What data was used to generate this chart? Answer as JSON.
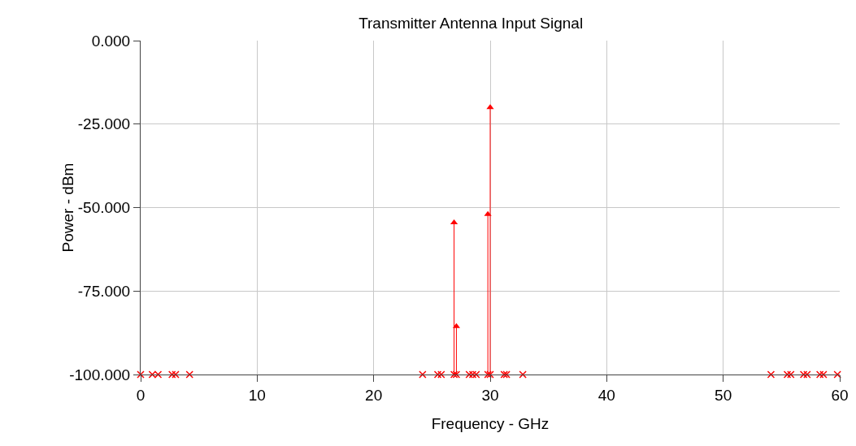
{
  "chart_data": {
    "type": "scatter",
    "title": "Transmitter Antenna Input Signal",
    "xlabel": "Frequency - GHz",
    "ylabel": "Power - dBm",
    "series": [
      {
        "type": "lollipop",
        "marker": "triangle",
        "color": "#ff0000",
        "x": [
          26.9,
          27.1,
          29.8,
          30.0
        ],
        "values": [
          -54.5,
          -85.6,
          -52,
          -20
        ]
      },
      {
        "marker": "cross",
        "color": "#ff0000",
        "x": [
          0,
          1.0,
          1.5,
          2.7,
          3.0,
          4.2,
          24.2,
          25.5,
          25.8,
          26.9,
          27.1,
          28.2,
          28.5,
          28.8,
          29.8,
          30.0,
          31.2,
          31.4,
          32.8,
          54.1,
          55.5,
          55.8,
          56.9,
          57.2,
          58.3,
          58.6,
          59.8
        ],
        "values": [
          -100,
          -100,
          -100,
          -100,
          -100,
          -100,
          -100,
          -100,
          -100,
          -100,
          -100,
          -100,
          -100,
          -100,
          -100,
          -100,
          -100,
          -100,
          -100,
          -100,
          -100,
          -100,
          -100,
          -100,
          -100,
          -100,
          -100
        ]
      }
    ],
    "xlim": [
      0,
      60
    ],
    "xticks": [
      0,
      10,
      20,
      30,
      40,
      50,
      60
    ],
    "ylim": [
      -100,
      0
    ],
    "yticks": [
      {
        "value": 0,
        "label": "0.000"
      },
      {
        "value": -25,
        "label": "-25.000"
      },
      {
        "value": -50,
        "label": "-50.000"
      },
      {
        "value": -75,
        "label": "-75.000"
      },
      {
        "value": -100,
        "label": "-100.000"
      }
    ],
    "grid": true
  }
}
